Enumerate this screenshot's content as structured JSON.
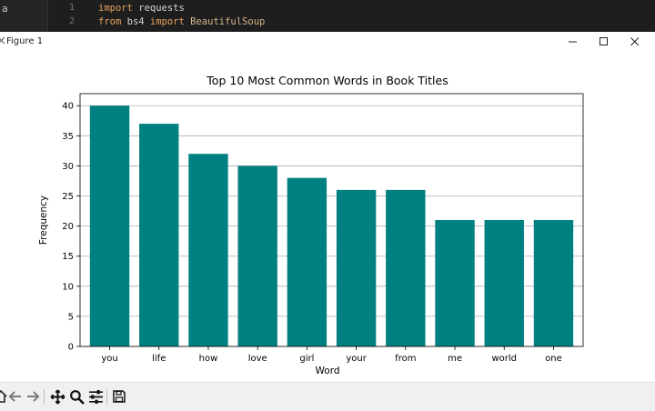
{
  "editor": {
    "sidebar_label": "a",
    "lines": [
      {
        "num": "1",
        "keyword1": "import",
        "text1": " requests",
        "keyword2": "",
        "text2": ""
      },
      {
        "num": "2",
        "keyword1": "from",
        "text1": " bs4 ",
        "keyword2": "import",
        "text2": " BeautifulSoup"
      }
    ]
  },
  "window": {
    "title": "Figure 1",
    "minimize_icon": "minimize-icon",
    "maximize_icon": "maximize-icon",
    "close_icon": "close-icon"
  },
  "toolbar": {
    "icons": [
      "home-icon",
      "back-arrow-icon",
      "forward-arrow-icon",
      "pan-icon",
      "zoom-icon",
      "configure-subplots-icon",
      "save-icon"
    ]
  },
  "colors": {
    "bar": "#008080",
    "grid": "#b0b0b0"
  },
  "chart_data": {
    "type": "bar",
    "title": "Top 10 Most Common Words in Book Titles",
    "xlabel": "Word",
    "ylabel": "Frequency",
    "categories": [
      "you",
      "life",
      "how",
      "love",
      "girl",
      "your",
      "from",
      "me",
      "world",
      "one"
    ],
    "values": [
      40,
      37,
      32,
      30,
      28,
      26,
      26,
      21,
      21,
      21
    ],
    "ylim": [
      0,
      42
    ],
    "yticks": [
      0,
      5,
      10,
      15,
      20,
      25,
      30,
      35,
      40
    ],
    "grid": "y-axis",
    "legend": "none"
  }
}
